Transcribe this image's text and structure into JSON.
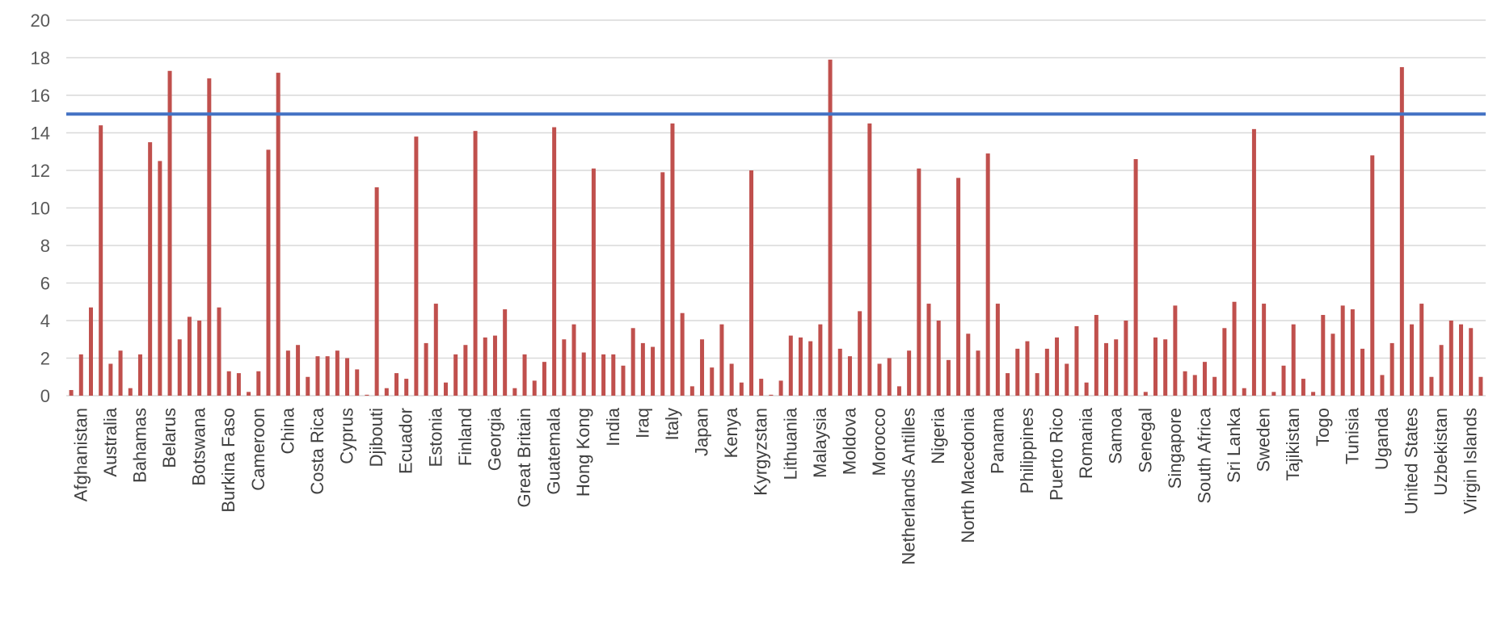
{
  "chart_data": {
    "type": "bar",
    "ylim": [
      0,
      20
    ],
    "yticks": [
      0,
      2,
      4,
      6,
      8,
      10,
      12,
      14,
      16,
      18,
      20
    ],
    "grid": true,
    "bar_color": "#c0504d",
    "gridline_color": "#d9d9d9",
    "reference_line": {
      "value": 15,
      "color": "#4472c4"
    },
    "category_labels": [
      "Afghanistan",
      "Australia",
      "Bahamas",
      "Belarus",
      "Botswana",
      "Burkina Faso",
      "Cameroon",
      "China",
      "Costa Rica",
      "Cyprus",
      "Djibouti",
      "Ecuador",
      "Estonia",
      "Finland",
      "Georgia",
      "Great Britain",
      "Guatemala",
      "Hong Kong",
      "India",
      "Iraq",
      "Italy",
      "Japan",
      "Kenya",
      "Kyrgyzstan",
      "Lithuania",
      "Malaysia",
      "Moldova",
      "Morocco",
      "Netherlands Antilles",
      "Nigeria",
      "North Macedonia",
      "Panama",
      "Philippines",
      "Puerto Rico",
      "Romania",
      "Samoa",
      "Senegal",
      "Singapore",
      "South Africa",
      "Sri Lanka",
      "Sweden",
      "Tajikistan",
      "Togo",
      "Tunisia",
      "Uganda",
      "United States",
      "Uzbekistan",
      "Virgin Islands"
    ],
    "bars_per_label": 3,
    "values": [
      0.3,
      2.2,
      4.7,
      14.4,
      1.7,
      2.4,
      0.4,
      2.2,
      13.5,
      12.5,
      17.3,
      3.0,
      4.2,
      4.0,
      16.9,
      4.7,
      1.3,
      1.2,
      0.2,
      1.3,
      13.1,
      17.2,
      2.4,
      2.7,
      1.0,
      2.1,
      2.1,
      2.4,
      2.0,
      1.4,
      0.05,
      11.1,
      0.4,
      1.2,
      0.9,
      13.8,
      2.8,
      4.9,
      0.7,
      2.2,
      2.7,
      14.1,
      3.1,
      3.2,
      4.6,
      0.4,
      2.2,
      0.8,
      1.8,
      14.3,
      3.0,
      3.8,
      2.3,
      12.1,
      2.2,
      2.2,
      1.6,
      3.6,
      2.8,
      2.6,
      11.9,
      14.5,
      4.4,
      0.5,
      3.0,
      1.5,
      3.8,
      1.7,
      0.7,
      12.0,
      0.9,
      0.05,
      0.8,
      3.2,
      3.1,
      2.9,
      3.8,
      17.9,
      2.5,
      2.1,
      4.5,
      14.5,
      1.7,
      2.0,
      0.5,
      2.4,
      12.1,
      4.9,
      4.0,
      1.9,
      11.6,
      3.3,
      2.4,
      12.9,
      4.9,
      1.2,
      2.5,
      2.9,
      1.2,
      2.5,
      3.1,
      1.7,
      3.7,
      0.7,
      4.3,
      2.8,
      3.0,
      4.0,
      12.6,
      0.2,
      3.1,
      3.0,
      4.8,
      1.3,
      1.1,
      1.8,
      1.0,
      3.6,
      5.0,
      0.4,
      14.2,
      4.9,
      0.2,
      1.6,
      3.8,
      0.9,
      0.2,
      4.3,
      3.3,
      4.8,
      4.6,
      2.5,
      12.8,
      1.1,
      2.8,
      17.5,
      3.8,
      4.9,
      1.0,
      2.7,
      4.0,
      3.8,
      3.6,
      1.0
    ]
  }
}
